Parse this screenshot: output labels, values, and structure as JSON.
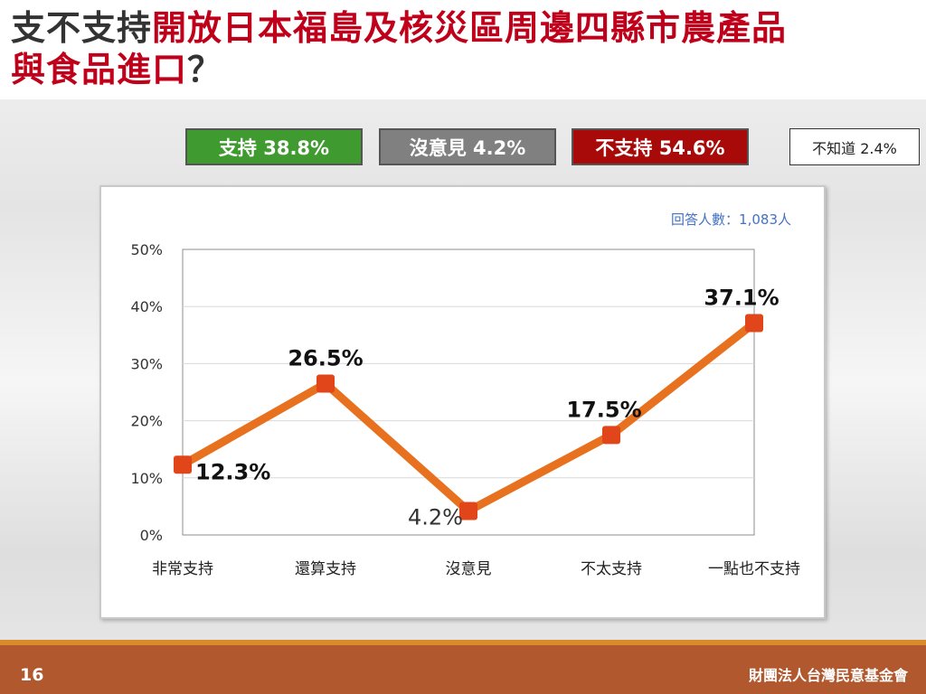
{
  "title": {
    "dark_part": "支不支持",
    "red_part_line1": "開放日本福島及核災區周邊四縣市農產品",
    "red_part_line2": "與食品進口",
    "question_mark": "？"
  },
  "summary": {
    "support": "支持 38.8%",
    "neutral": "沒意見 4.2%",
    "oppose": "不支持 54.6%",
    "unknown": "不知道 2.4%"
  },
  "colors": {
    "line": "#e8711f",
    "marker": "#e0461a",
    "support": "#3f9a2f",
    "neutral": "#808080",
    "oppose": "#a80a0a",
    "footer": "#b1582e",
    "respondents": "#4472c4"
  },
  "respondents": "回答人數：1,083人",
  "chart_data": {
    "type": "line",
    "categories": [
      "非常支持",
      "還算支持",
      "沒意見",
      "不太支持",
      "一點也不支持"
    ],
    "values": [
      12.3,
      26.5,
      4.2,
      17.5,
      37.1
    ],
    "value_labels": [
      "12.3%",
      "26.5%",
      "4.2%",
      "17.5%",
      "37.1%"
    ],
    "y_ticks": [
      "0%",
      "10%",
      "20%",
      "30%",
      "40%",
      "50%"
    ],
    "ylim": [
      0,
      50
    ],
    "grid": true,
    "legend": "none"
  },
  "footer": {
    "page_number": "16",
    "organization": "財團法人台灣民意基金會"
  }
}
